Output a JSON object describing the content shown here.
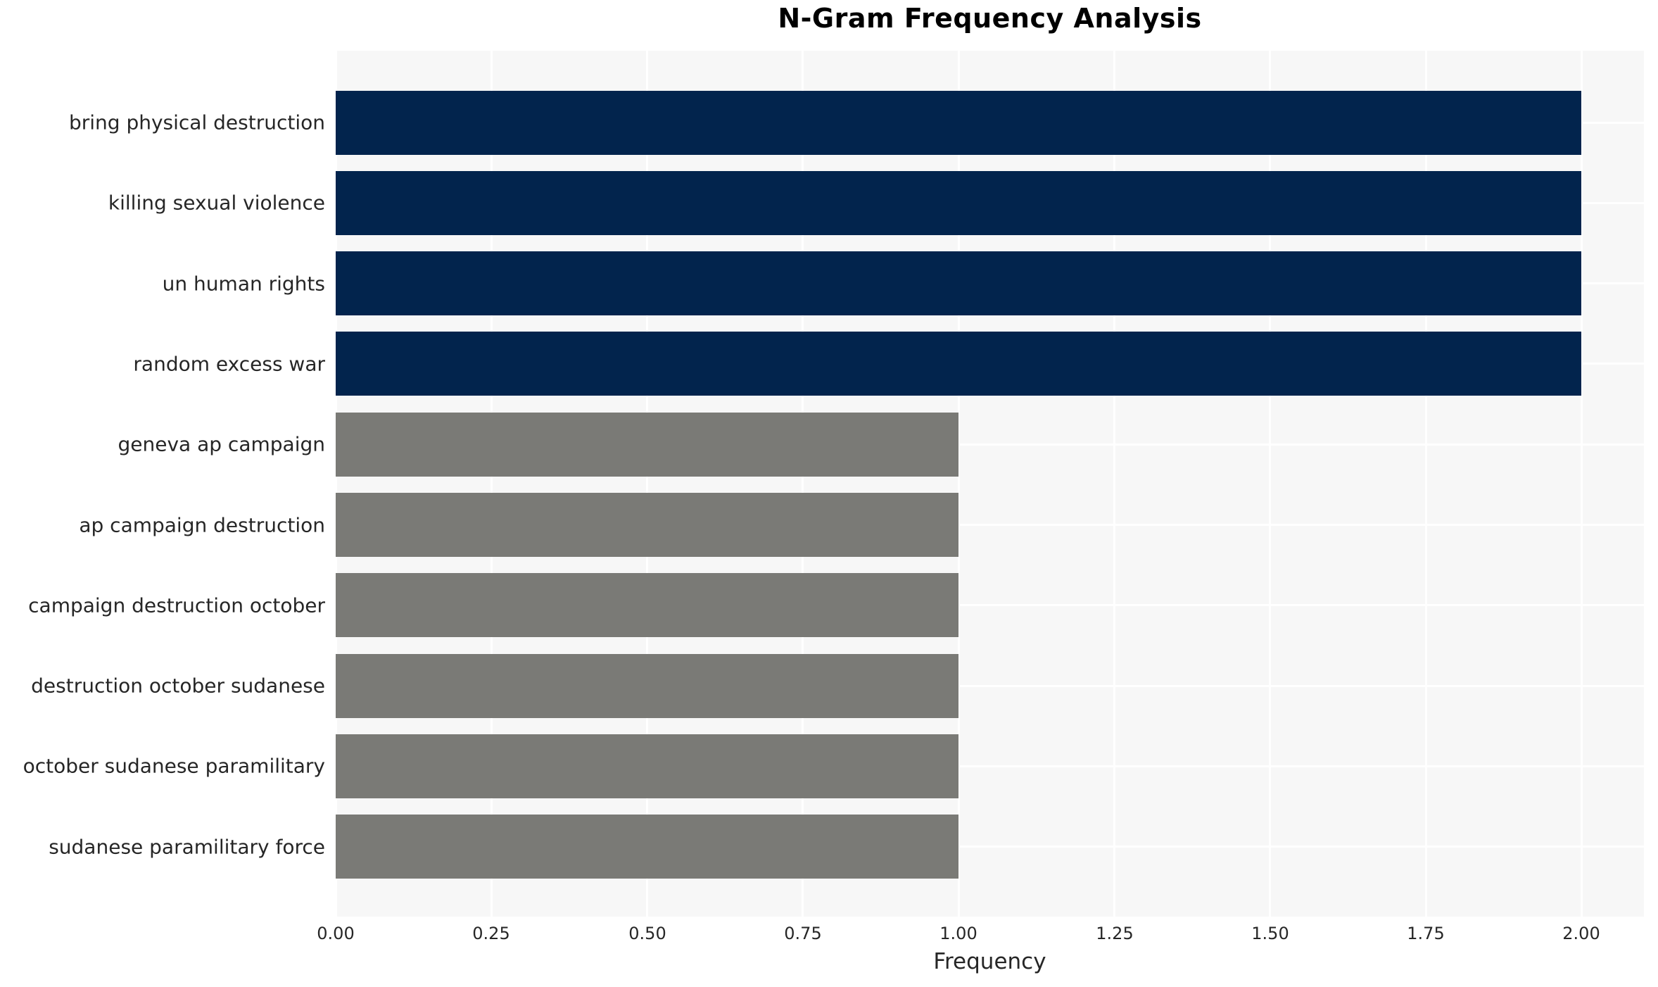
{
  "chart_data": {
    "type": "bar",
    "orientation": "horizontal",
    "title": "N-Gram Frequency Analysis",
    "xlabel": "Frequency",
    "ylabel": "",
    "categories": [
      "bring physical destruction",
      "killing sexual violence",
      "un human rights",
      "random excess war",
      "geneva ap campaign",
      "ap campaign destruction",
      "campaign destruction october",
      "destruction october sudanese",
      "october sudanese paramilitary",
      "sudanese paramilitary force"
    ],
    "values": [
      2,
      2,
      2,
      2,
      1,
      1,
      1,
      1,
      1,
      1
    ],
    "bar_colors": [
      "#02244D",
      "#02244D",
      "#02244D",
      "#02244D",
      "#7A7A76",
      "#7A7A76",
      "#7A7A76",
      "#7A7A76",
      "#7A7A76",
      "#7A7A76"
    ],
    "xlim": [
      0,
      2.1
    ],
    "xticks": [
      0.0,
      0.25,
      0.5,
      0.75,
      1.0,
      1.25,
      1.5,
      1.75,
      2.0
    ],
    "xtick_labels": [
      "0.00",
      "0.25",
      "0.50",
      "0.75",
      "1.00",
      "1.25",
      "1.50",
      "1.75",
      "2.00"
    ],
    "grid": true,
    "legend_position": "none",
    "colors": {
      "high_freq_bar": "#02244D",
      "low_freq_bar": "#7A7A76",
      "plot_background": "#F7F7F7",
      "gridline": "#FFFFFF",
      "tick_text": "#262626",
      "title_text": "#000000"
    }
  }
}
